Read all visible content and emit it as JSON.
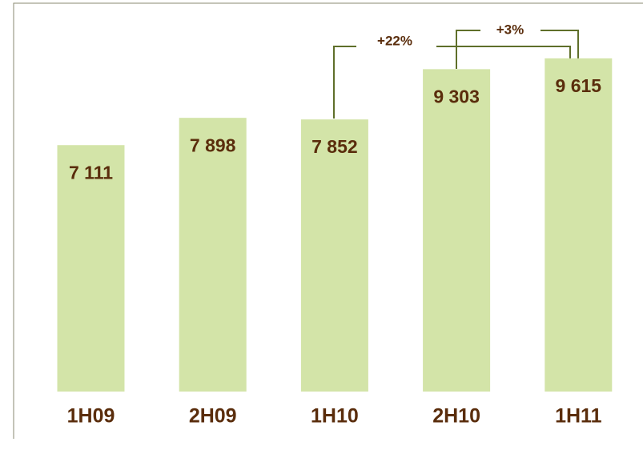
{
  "chart_data": {
    "type": "bar",
    "categories": [
      "1H09",
      "2H09",
      "1H10",
      "2H10",
      "1H11"
    ],
    "values": [
      7111,
      7898,
      7852,
      9303,
      9615
    ],
    "value_labels": [
      "7 111",
      "7 898",
      "7 852",
      "9 303",
      "9 615"
    ],
    "color": "#d3e4a8",
    "annotations": [
      "+22%",
      "+3%"
    ]
  }
}
